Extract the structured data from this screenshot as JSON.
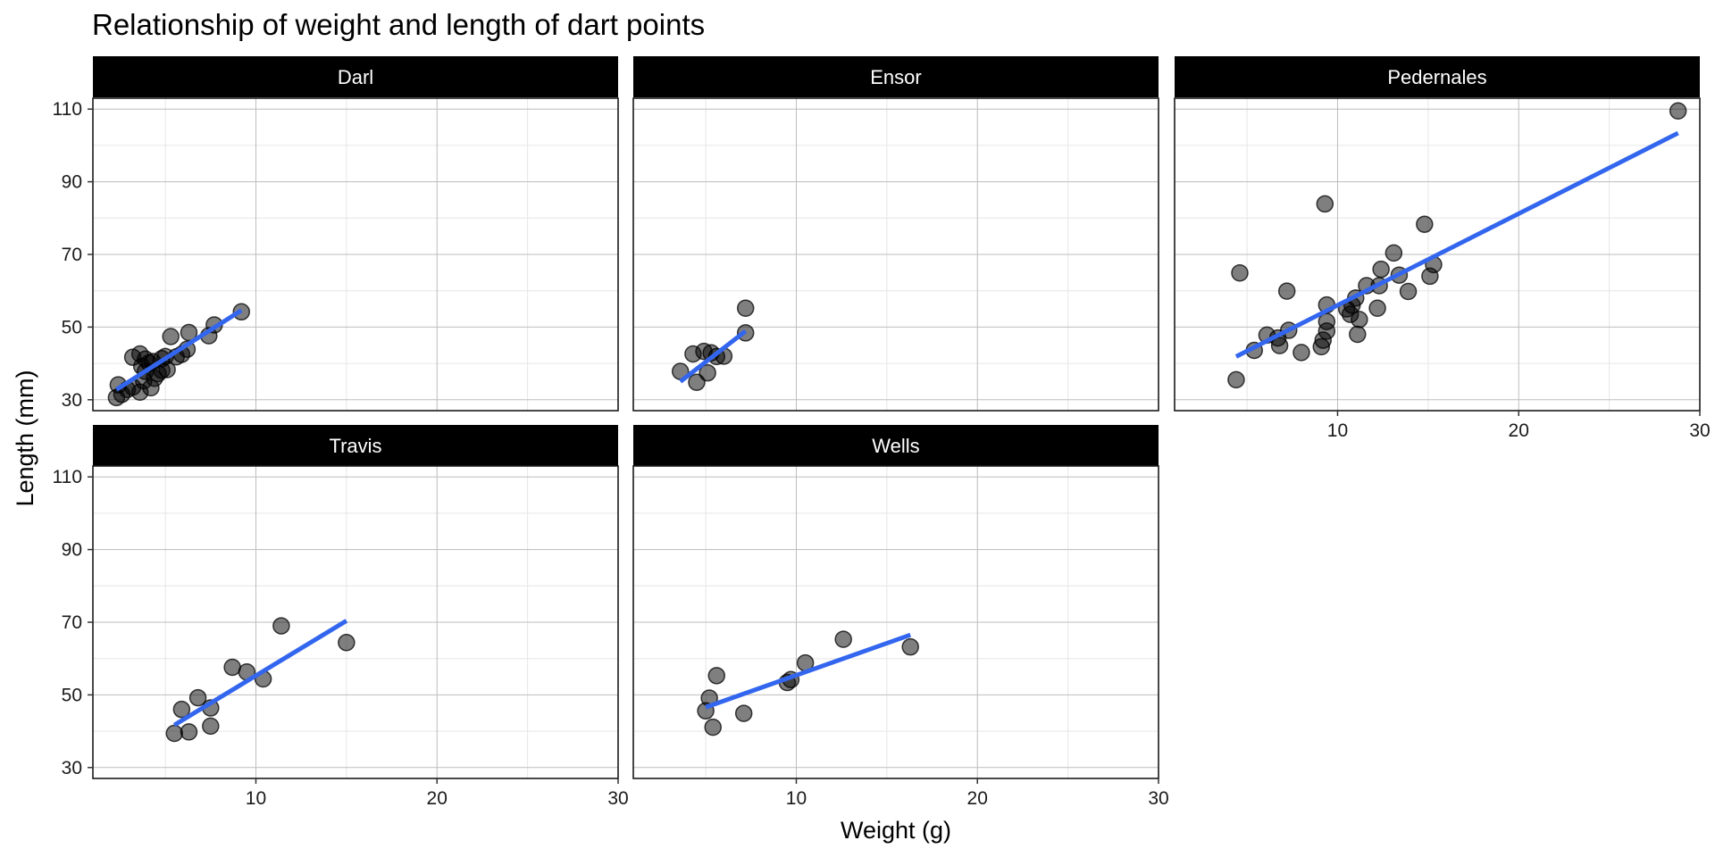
{
  "chart_data": {
    "type": "scatter",
    "title": "Relationship of weight and length of dart points",
    "xlabel": "Weight (g)",
    "ylabel": "Length (mm)",
    "xlim": [
      1,
      30
    ],
    "ylim": [
      27,
      113
    ],
    "x_ticks": [
      10,
      20,
      30
    ],
    "y_ticks": [
      30,
      50,
      70,
      90,
      110
    ],
    "grid": true,
    "facets": [
      {
        "name": "Darl",
        "points": [
          [
            2.3,
            30.6
          ],
          [
            2.6,
            31.5
          ],
          [
            2.9,
            32.8
          ],
          [
            2.4,
            34.1
          ],
          [
            3.2,
            33.5
          ],
          [
            3.6,
            32.1
          ],
          [
            3.8,
            35.2
          ],
          [
            4.2,
            33.3
          ],
          [
            4.4,
            35.9
          ],
          [
            3.9,
            37.8
          ],
          [
            4.6,
            37.2
          ],
          [
            4.8,
            38.1
          ],
          [
            5.1,
            38.3
          ],
          [
            3.7,
            39.2
          ],
          [
            4.1,
            40.1
          ],
          [
            3.9,
            41.2
          ],
          [
            4.3,
            40.5
          ],
          [
            3.6,
            42.6
          ],
          [
            3.2,
            41.7
          ],
          [
            4.8,
            41.3
          ],
          [
            5.0,
            41.9
          ],
          [
            5.6,
            41.8
          ],
          [
            5.9,
            42.5
          ],
          [
            6.2,
            43.9
          ],
          [
            6.3,
            48.5
          ],
          [
            5.3,
            47.4
          ],
          [
            7.4,
            47.6
          ],
          [
            7.7,
            50.6
          ],
          [
            9.2,
            54.2
          ]
        ],
        "fit": [
          [
            2.3,
            32.8
          ],
          [
            9.2,
            54.6
          ]
        ]
      },
      {
        "name": "Ensor",
        "points": [
          [
            3.6,
            37.8
          ],
          [
            4.3,
            42.6
          ],
          [
            4.5,
            34.8
          ],
          [
            4.9,
            43.3
          ],
          [
            5.1,
            37.4
          ],
          [
            5.3,
            42.9
          ],
          [
            5.6,
            41.9
          ],
          [
            6.0,
            42.0
          ],
          [
            7.2,
            48.4
          ],
          [
            7.2,
            55.2
          ]
        ],
        "fit": [
          [
            3.6,
            35.0
          ],
          [
            7.2,
            48.9
          ]
        ]
      },
      {
        "name": "Pedernales",
        "points": [
          [
            4.4,
            35.5
          ],
          [
            4.6,
            64.9
          ],
          [
            5.4,
            43.6
          ],
          [
            6.1,
            47.8
          ],
          [
            6.7,
            47.0
          ],
          [
            6.8,
            44.9
          ],
          [
            7.2,
            59.9
          ],
          [
            7.3,
            49.1
          ],
          [
            8.0,
            43.0
          ],
          [
            9.1,
            44.6
          ],
          [
            9.2,
            46.4
          ],
          [
            9.3,
            83.9
          ],
          [
            9.4,
            56.1
          ],
          [
            9.4,
            48.9
          ],
          [
            9.4,
            51.5
          ],
          [
            10.5,
            55.0
          ],
          [
            10.7,
            53.5
          ],
          [
            10.8,
            56.0
          ],
          [
            11.0,
            58.0
          ],
          [
            11.1,
            48.0
          ],
          [
            11.2,
            52.1
          ],
          [
            11.6,
            61.4
          ],
          [
            12.2,
            55.2
          ],
          [
            12.3,
            61.4
          ],
          [
            12.4,
            65.9
          ],
          [
            13.1,
            70.4
          ],
          [
            13.4,
            64.3
          ],
          [
            13.9,
            59.8
          ],
          [
            14.8,
            78.3
          ],
          [
            15.1,
            64.0
          ],
          [
            15.3,
            67.2
          ],
          [
            28.8,
            109.5
          ]
        ],
        "fit": [
          [
            4.4,
            41.9
          ],
          [
            28.8,
            103.4
          ]
        ]
      },
      {
        "name": "Travis",
        "points": [
          [
            5.5,
            39.4
          ],
          [
            5.9,
            46.0
          ],
          [
            6.3,
            39.8
          ],
          [
            6.8,
            49.2
          ],
          [
            7.5,
            46.4
          ],
          [
            7.5,
            41.4
          ],
          [
            8.7,
            57.6
          ],
          [
            9.5,
            56.3
          ],
          [
            10.4,
            54.4
          ],
          [
            11.4,
            69.0
          ],
          [
            15.0,
            64.4
          ]
        ],
        "fit": [
          [
            5.5,
            41.7
          ],
          [
            15.0,
            70.4
          ]
        ]
      },
      {
        "name": "Wells",
        "points": [
          [
            5.0,
            45.6
          ],
          [
            5.2,
            49.1
          ],
          [
            5.4,
            41.1
          ],
          [
            5.6,
            55.3
          ],
          [
            7.1,
            44.9
          ],
          [
            9.5,
            53.4
          ],
          [
            9.7,
            54.2
          ],
          [
            10.5,
            58.8
          ],
          [
            12.6,
            65.3
          ],
          [
            16.3,
            63.2
          ]
        ],
        "fit": [
          [
            5.0,
            46.6
          ],
          [
            16.3,
            66.5
          ]
        ]
      }
    ]
  }
}
